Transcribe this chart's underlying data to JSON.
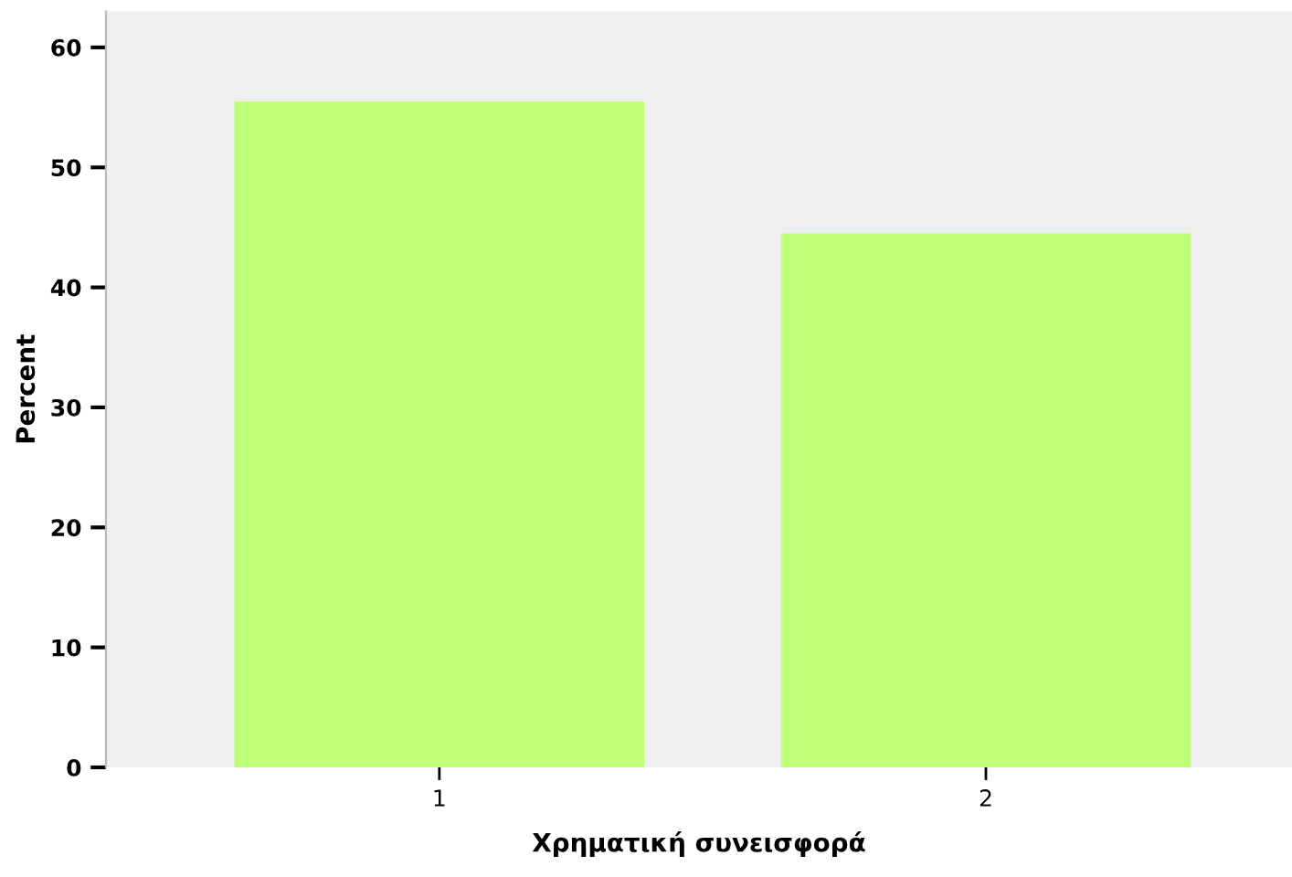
{
  "chart_data": {
    "type": "bar",
    "xlabel": "Χρηματική συνεισφορά",
    "ylabel": "Percent",
    "categories": [
      "1",
      "2"
    ],
    "values": [
      55.5,
      44.5
    ],
    "color": "#bfff78",
    "ylim": [
      0,
      63
    ],
    "yticks": [
      0,
      10,
      20,
      30,
      40,
      50,
      60
    ],
    "grid": false
  }
}
